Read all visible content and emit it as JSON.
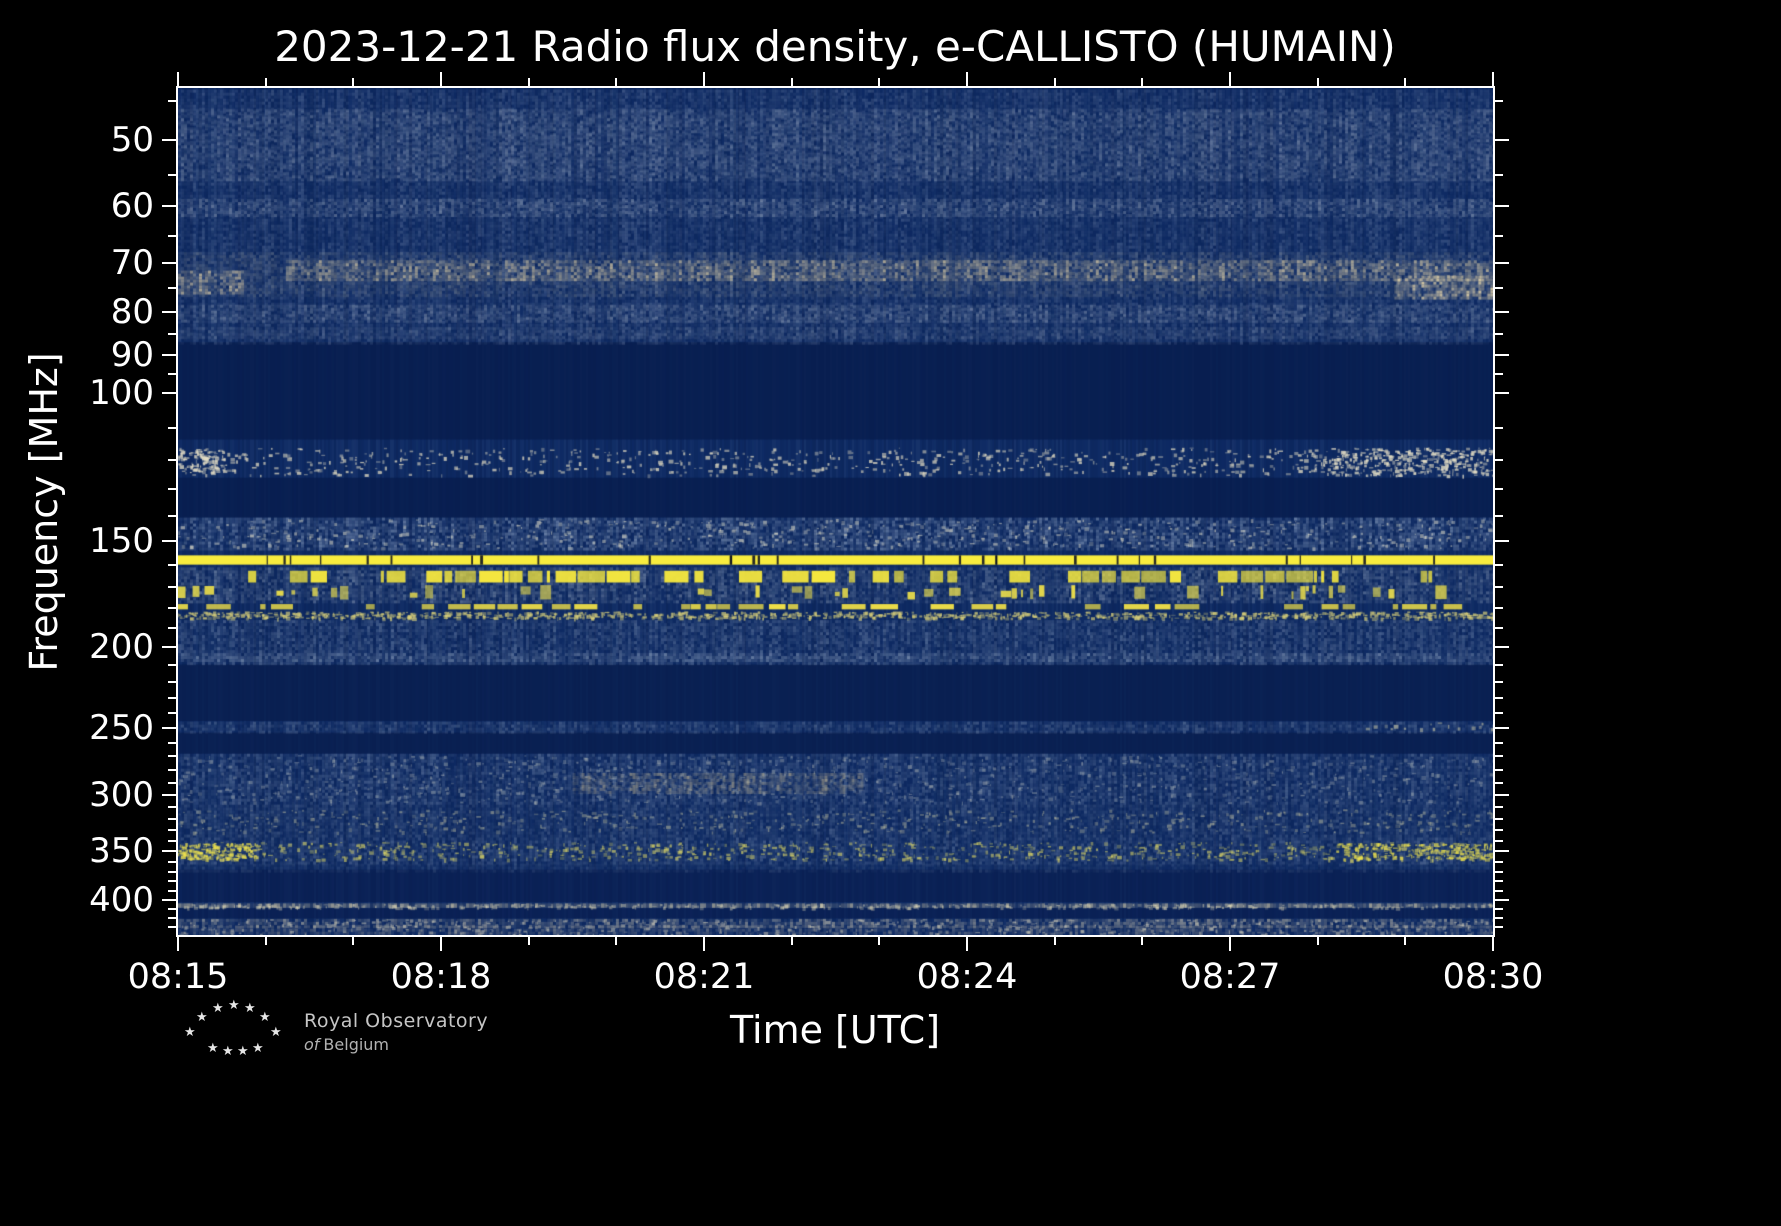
{
  "logo": {
    "star_glyph": "★",
    "line1": "Royal Observatory",
    "line2_prefix": "of",
    "line2_word": "Belgium"
  },
  "chart_data": {
    "type": "heatmap",
    "subtype": "radio-spectrogram",
    "title": "2023-12-21 Radio flux density, e-CALLISTO (HUMAIN)",
    "date": "2023-12-21",
    "instrument_network": "e-CALLISTO",
    "station": "HUMAIN",
    "xlabel": "Time [UTC]",
    "ylabel": "Frequency [MHz]",
    "x_axis": {
      "start": "08:15",
      "end": "08:30",
      "span_minutes": 15,
      "major_ticks": [
        {
          "label": "08:15",
          "min": 0
        },
        {
          "label": "08:18",
          "min": 3
        },
        {
          "label": "08:21",
          "min": 6
        },
        {
          "label": "08:24",
          "min": 9
        },
        {
          "label": "08:27",
          "min": 12
        },
        {
          "label": "08:30",
          "min": 15
        }
      ],
      "minor_tick_minutes": [
        1,
        2,
        4,
        5,
        7,
        8,
        10,
        11,
        13,
        14
      ]
    },
    "y_axis": {
      "scale": "log",
      "inverted": "low frequency at top",
      "range_mhz": [
        43.4,
        440
      ],
      "major_ticks": [
        {
          "label": "50",
          "mhz": 50
        },
        {
          "label": "60",
          "mhz": 60
        },
        {
          "label": "70",
          "mhz": 70
        },
        {
          "label": "80",
          "mhz": 80
        },
        {
          "label": "90",
          "mhz": 90
        },
        {
          "label": "100",
          "mhz": 100
        },
        {
          "label": "150",
          "mhz": 150
        },
        {
          "label": "200",
          "mhz": 200
        },
        {
          "label": "250",
          "mhz": 250
        },
        {
          "label": "300",
          "mhz": 300
        },
        {
          "label": "350",
          "mhz": 350
        },
        {
          "label": "400",
          "mhz": 400
        }
      ],
      "minor_tick_mhz": [
        45,
        55,
        65,
        75,
        85,
        95,
        110,
        120,
        130,
        140,
        160,
        170,
        180,
        190,
        210,
        220,
        230,
        240,
        260,
        270,
        280,
        290,
        310,
        320,
        330,
        340,
        360,
        370,
        380,
        390,
        410,
        420,
        430
      ]
    },
    "colors": {
      "background": "#000000",
      "base": "#0e2a63",
      "dark": "#081d4e",
      "axis": "#ffffff",
      "rfi_yellow": "#f8ec3e"
    },
    "bands": [
      {
        "name": "quiet-zone-87-113",
        "type": "dark",
        "f_lo": 87,
        "f_hi": 113.5,
        "alpha": 0.8
      },
      {
        "name": "quiet-zone-126-140",
        "type": "dark",
        "f_lo": 126,
        "f_hi": 140.5,
        "alpha": 0.8
      },
      {
        "name": "quiet-zone-210-245",
        "type": "dark",
        "f_lo": 210,
        "f_hi": 245,
        "alpha": 0.75
      },
      {
        "name": "quiet-zone-253-268",
        "type": "dark",
        "f_lo": 253,
        "f_hi": 268,
        "alpha": 0.75
      },
      {
        "name": "quiet-zone-368-402",
        "type": "dark",
        "f_lo": 368,
        "f_hi": 402,
        "alpha": 0.6
      },
      {
        "name": "quiet-zone-409-420",
        "type": "dark",
        "f_lo": 409,
        "f_hi": 420.5,
        "alpha": 0.6
      },
      {
        "name": "galactic-haze-44-87",
        "type": "noise",
        "f_lo": 43.6,
        "f_hi": 87,
        "color": "#9fb0cc",
        "alpha": 0.1
      },
      {
        "name": "band-50",
        "type": "noise",
        "f_lo": 46,
        "f_hi": 56,
        "color": "#aab6c8",
        "alpha": 0.14
      },
      {
        "name": "band-60",
        "type": "noise",
        "f_lo": 58.8,
        "f_hi": 61.5,
        "color": "#a8b4c6",
        "alpha": 0.16
      },
      {
        "name": "band-70-wide",
        "type": "noise",
        "f_lo": 68,
        "f_hi": 76.5,
        "color": "#b7b6a8",
        "alpha": 0.1
      },
      {
        "name": "band-70-step",
        "type": "noise",
        "f_lo": 69.5,
        "f_hi": 73.5,
        "color": "#cfc2a0",
        "alpha": 0.28,
        "x0": 0.082
      },
      {
        "name": "band-74-left-edge",
        "type": "noise",
        "f_lo": 71.5,
        "f_hi": 76,
        "color": "#d2c4a2",
        "alpha": 0.3,
        "x1": 0.05
      },
      {
        "name": "band-74-right-edge",
        "type": "noise",
        "f_lo": 72.5,
        "f_hi": 77,
        "color": "#d6c8a4",
        "alpha": 0.38,
        "x0": 0.925
      },
      {
        "name": "band-80",
        "type": "noise",
        "f_lo": 78.5,
        "f_hi": 82,
        "color": "#a8b4c6",
        "alpha": 0.15
      },
      {
        "name": "band-85",
        "type": "noise",
        "f_lo": 83.5,
        "f_hi": 86.2,
        "color": "#9fabbd",
        "alpha": 0.1
      },
      {
        "name": "pager-speckle-116-125",
        "type": "speckle",
        "f_lo": 116,
        "f_hi": 125,
        "color": "#ded8c0",
        "density": 0.55,
        "alpha": 0.8
      },
      {
        "name": "pager-speckle-left-cluster",
        "type": "speckle",
        "f_lo": 116.5,
        "f_hi": 124,
        "x1": 0.035,
        "color": "#e4dec6",
        "density": 2.0,
        "alpha": 0.85
      },
      {
        "name": "pager-speckle-right-cluster",
        "type": "speckle",
        "f_lo": 116,
        "f_hi": 125,
        "x0": 0.86,
        "color": "#e4dec6",
        "density": 1.6,
        "alpha": 0.85
      },
      {
        "name": "airband-noise-141-153",
        "type": "noise",
        "f_lo": 140.5,
        "f_hi": 153,
        "color": "#9fb2cc",
        "alpha": 0.2
      },
      {
        "name": "airband-speckle",
        "type": "speckle",
        "f_lo": 141,
        "f_hi": 152.5,
        "color": "#e8e4cc",
        "density": 0.4,
        "alpha": 0.55
      },
      {
        "name": "rfi-line-158",
        "type": "line",
        "f_lo": 155.8,
        "f_hi": 159.8,
        "color": "#f8ec3e",
        "gaps": 30
      },
      {
        "name": "rfi-base-161-177",
        "type": "noise",
        "f_lo": 161,
        "f_hi": 177,
        "color": "#9aaac0",
        "alpha": 0.18
      },
      {
        "name": "rfi-dashes-163-168",
        "type": "dashes",
        "f_lo": 162.5,
        "f_hi": 167.8,
        "color": "#f6e83e",
        "fill": 0.6
      },
      {
        "name": "rfi-blocks-169-176",
        "type": "blocks",
        "f_lo": 169,
        "f_hi": 175.8,
        "color": "#f0e24a",
        "fill": 0.38
      },
      {
        "name": "rfi-dashes-178-181",
        "type": "dashes",
        "f_lo": 178,
        "f_hi": 180.6,
        "color": "#eede48",
        "fill": 0.5
      },
      {
        "name": "rfi-speckle-182-185",
        "type": "speckle",
        "f_lo": 181.6,
        "f_hi": 184.8,
        "color": "#ddd37a",
        "density": 0.9,
        "alpha": 0.7
      },
      {
        "name": "noise-186-209",
        "type": "noise",
        "f_lo": 186,
        "f_hi": 209,
        "color": "#8ea2c0",
        "alpha": 0.15
      },
      {
        "name": "noise-204-208",
        "type": "noise",
        "f_lo": 203.5,
        "f_hi": 208,
        "color": "#a2b4cc",
        "alpha": 0.15
      },
      {
        "name": "noise-246-252",
        "type": "noise",
        "f_lo": 245.5,
        "f_hi": 252,
        "color": "#97aac4",
        "alpha": 0.13
      },
      {
        "name": "speckle-248-right",
        "type": "speckle",
        "f_lo": 245.5,
        "f_hi": 250,
        "x0": 0.9,
        "color": "#d8d2a8",
        "density": 0.12,
        "alpha": 0.6
      },
      {
        "name": "noise-268-306",
        "type": "noise",
        "f_lo": 268,
        "f_hi": 306.5,
        "color": "#93a6c2",
        "alpha": 0.14
      },
      {
        "name": "speckle-268-306",
        "type": "speckle",
        "f_lo": 269,
        "f_hi": 306,
        "color": "#ccd0c6",
        "density": 0.6,
        "alpha": 0.4
      },
      {
        "name": "tan-patches-283-297",
        "type": "noise",
        "f_lo": 282.5,
        "f_hi": 297,
        "x0": 0.3,
        "x1": 0.52,
        "color": "#c9ba92",
        "alpha": 0.2
      },
      {
        "name": "noise-308-336",
        "type": "noise",
        "f_lo": 308,
        "f_hi": 336,
        "color": "#8fa2bc",
        "alpha": 0.12
      },
      {
        "name": "speckle-312-332",
        "type": "speckle",
        "f_lo": 312,
        "f_hi": 332,
        "color": "#d8d4a8",
        "density": 0.4,
        "alpha": 0.45
      },
      {
        "name": "noise-337-362",
        "type": "noise",
        "f_lo": 337,
        "f_hi": 362,
        "color": "#93a6c2",
        "alpha": 0.13
      },
      {
        "name": "speckle-341-358",
        "type": "speckle",
        "f_lo": 341,
        "f_hi": 358,
        "color": "#e6de66",
        "density": 0.6,
        "alpha": 0.6
      },
      {
        "name": "speckle-350-left-cluster",
        "type": "speckle",
        "f_lo": 342,
        "f_hi": 357,
        "x1": 0.06,
        "color": "#eee24e",
        "density": 2.2,
        "alpha": 0.8
      },
      {
        "name": "speckle-350-right-cluster",
        "type": "speckle",
        "f_lo": 342,
        "f_hi": 357,
        "x0": 0.88,
        "color": "#eee24e",
        "density": 1.4,
        "alpha": 0.75
      },
      {
        "name": "noise-362-368",
        "type": "noise",
        "f_lo": 362,
        "f_hi": 368,
        "color": "#8a9eb8",
        "alpha": 0.07
      },
      {
        "name": "rfi-405",
        "type": "noise",
        "f_lo": 403.5,
        "f_hi": 408.5,
        "color": "#cfc6a6",
        "alpha": 0.3
      },
      {
        "name": "rfi-405-speckle",
        "type": "speckle",
        "f_lo": 404,
        "f_hi": 408,
        "color": "#e8e0ba",
        "density": 0.3,
        "alpha": 0.5
      },
      {
        "name": "bottom-band-421-428",
        "type": "noise",
        "f_lo": 421,
        "f_hi": 428,
        "color": "#c6c0ac",
        "alpha": 0.22
      },
      {
        "name": "bottom-band-429-440",
        "type": "noise",
        "f_lo": 429,
        "f_hi": 439.5,
        "color": "#bab4a4",
        "alpha": 0.17
      },
      {
        "name": "bottom-speckle",
        "type": "speckle",
        "f_lo": 421,
        "f_hi": 439,
        "color": "#ded8c0",
        "density": 0.35,
        "alpha": 0.5
      }
    ]
  }
}
